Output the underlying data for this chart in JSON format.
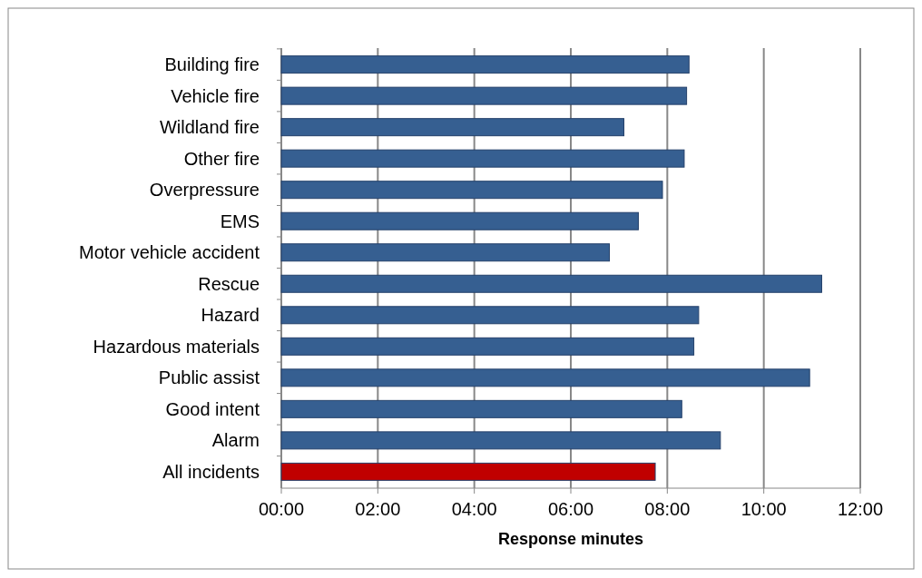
{
  "chart_data": {
    "type": "bar",
    "orientation": "horizontal",
    "xlabel": "Response minutes",
    "categories": [
      "Building fire",
      "Vehicle fire",
      "Wildland fire",
      "Other fire",
      "Overpressure",
      "EMS",
      "Motor vehicle accident",
      "Rescue",
      "Hazard",
      "Hazardous materials",
      "Public assist",
      "Good intent",
      "Alarm",
      "All incidents"
    ],
    "values": [
      8.45,
      8.4,
      7.1,
      8.35,
      7.9,
      7.4,
      6.8,
      11.2,
      8.65,
      8.55,
      10.95,
      8.3,
      9.1,
      7.75
    ],
    "colors": [
      "#365f91",
      "#365f91",
      "#365f91",
      "#365f91",
      "#365f91",
      "#365f91",
      "#365f91",
      "#365f91",
      "#365f91",
      "#365f91",
      "#365f91",
      "#365f91",
      "#365f91",
      "#c00000"
    ],
    "xlim": [
      0,
      12
    ],
    "xticks": [
      {
        "value": 0,
        "label": "00:00"
      },
      {
        "value": 2,
        "label": "02:00"
      },
      {
        "value": 4,
        "label": "04:00"
      },
      {
        "value": 6,
        "label": "06:00"
      },
      {
        "value": 8,
        "label": "08:00"
      },
      {
        "value": 10,
        "label": "10:00"
      },
      {
        "value": 12,
        "label": "12:00"
      }
    ],
    "grid": "x"
  }
}
